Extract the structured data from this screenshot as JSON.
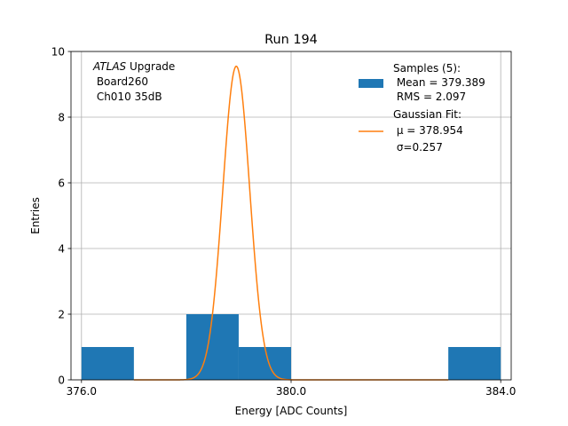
{
  "chart_data": {
    "type": "bar",
    "title": "Run 194",
    "xlabel": "Energy [ADC Counts]",
    "ylabel": "Entries",
    "xlim": [
      375.8,
      384.2
    ],
    "ylim": [
      0,
      10
    ],
    "xticks": [
      376.0,
      380.0,
      384.0
    ],
    "xtick_labels": [
      "376.0",
      "380.0",
      "384.0"
    ],
    "yticks": [
      0,
      2,
      4,
      6,
      8,
      10
    ],
    "ytick_labels": [
      "0",
      "2",
      "4",
      "6",
      "8",
      "10"
    ],
    "grid": true,
    "histogram": {
      "bins": [
        {
          "x0": 376.0,
          "x1": 377.0,
          "count": 1
        },
        {
          "x0": 377.0,
          "x1": 378.0,
          "count": 0
        },
        {
          "x0": 378.0,
          "x1": 379.0,
          "count": 2
        },
        {
          "x0": 379.0,
          "x1": 380.0,
          "count": 1
        },
        {
          "x0": 380.0,
          "x1": 381.0,
          "count": 0
        },
        {
          "x0": 381.0,
          "x1": 382.0,
          "count": 0
        },
        {
          "x0": 382.0,
          "x1": 383.0,
          "count": 0
        },
        {
          "x0": 383.0,
          "x1": 384.0,
          "count": 1
        }
      ],
      "color": "#1f77b4"
    },
    "fit": {
      "mu": 378.954,
      "sigma": 0.257,
      "amplitude": 9.55,
      "x_range": [
        377.0,
        383.0
      ],
      "color": "#ff7f0e"
    },
    "annotation": {
      "line1_italic": "ATLAS",
      "line1_rest": " Upgrade",
      "line2": " Board260",
      "line3": " Ch010 35dB"
    },
    "legend": {
      "placement": "top-right",
      "entries": [
        {
          "kind": "patch",
          "lines": [
            "Samples (5):",
            " Mean = 379.389",
            " RMS = 2.097"
          ]
        },
        {
          "kind": "line",
          "lines": [
            "Gaussian Fit:",
            " μ = 378.954",
            " σ=0.257"
          ]
        }
      ]
    }
  }
}
